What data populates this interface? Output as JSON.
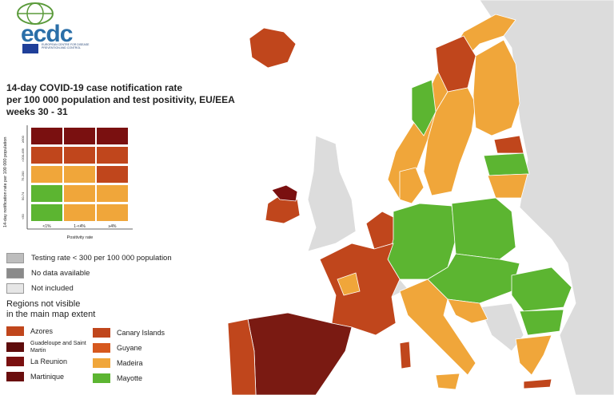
{
  "header": {
    "logo_text": "ecdc",
    "agency": "EUROPEAN CENTRE FOR DISEASE PREVENTION AND CONTROL"
  },
  "title": [
    "14-day COVID-19 case notification rate",
    "per 100 000 population and test positivity, EU/EEA",
    "weeks 30 - 31"
  ],
  "matrix": {
    "y_label": "14-day notification rate per 100 000 population",
    "row_labels": [
      "≥500",
      ">200-499",
      "75-200",
      "50-74",
      "<50"
    ],
    "column_labels": [
      "<1%",
      "1-<4%",
      "≥4%"
    ],
    "x_label": "Positivity rate"
  },
  "legend": [
    "Testing rate < 300 per 100 000 population",
    "No data available",
    "Not included"
  ],
  "regions_title": [
    "Regions not visible",
    "in the main map extent"
  ],
  "regions": [
    "Azores",
    "Guadeloupe and Saint Martin",
    "La Reunion",
    "Martinique",
    "Canary Islands",
    "Guyane",
    "Madeira",
    "Mayotte"
  ]
}
